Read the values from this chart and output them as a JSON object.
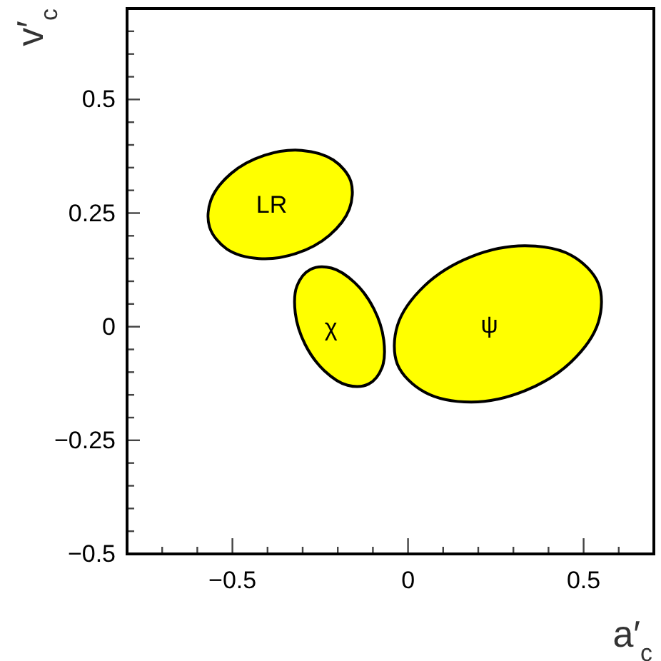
{
  "chart_data": {
    "type": "area",
    "xlabel": "a′$_{c}$",
    "ylabel": "v′$_{c}$",
    "xlim": [
      -0.8,
      0.7
    ],
    "ylim": [
      -0.5,
      0.7
    ],
    "xticks": [
      {
        "value": -0.7,
        "label": null
      },
      {
        "value": -0.6,
        "label": null
      },
      -0.5,
      {
        "value": -0.4,
        "label": null
      },
      {
        "value": -0.3,
        "label": null
      },
      {
        "value": -0.2,
        "label": null
      },
      {
        "value": -0.1,
        "label": null
      },
      0,
      {
        "value": 0.1,
        "label": null
      },
      {
        "value": 0.2,
        "label": null
      },
      {
        "value": 0.3,
        "label": null
      },
      {
        "value": 0.4,
        "label": null
      },
      0.5,
      {
        "value": 0.6,
        "label": null
      }
    ],
    "yticks": [
      -0.5,
      {
        "value": -0.45,
        "label": null
      },
      {
        "value": -0.4,
        "label": null
      },
      {
        "value": -0.35,
        "label": null
      },
      {
        "value": -0.3,
        "label": null
      },
      -0.25,
      {
        "value": -0.2,
        "label": null
      },
      {
        "value": -0.15,
        "label": null
      },
      {
        "value": -0.1,
        "label": null
      },
      {
        "value": -0.05,
        "label": null
      },
      0,
      {
        "value": 0.05,
        "label": null
      },
      {
        "value": 0.1,
        "label": null
      },
      {
        "value": 0.15,
        "label": null
      },
      {
        "value": 0.2,
        "label": null
      },
      0.25,
      {
        "value": 0.3,
        "label": null
      },
      {
        "value": 0.35,
        "label": null
      },
      {
        "value": 0.4,
        "label": null
      },
      {
        "value": 0.45,
        "label": null
      },
      0.5,
      {
        "value": 0.55,
        "label": null
      },
      {
        "value": 0.6,
        "label": null
      },
      {
        "value": 0.65,
        "label": null
      }
    ],
    "series": [
      {
        "name": "LR",
        "color": "#ffff00",
        "x": [
          -0.163,
          -0.167,
          -0.224,
          -0.319,
          -0.425,
          -0.516,
          -0.565,
          -0.561,
          -0.504,
          -0.409,
          -0.303,
          -0.213
        ],
        "values": [
          0.32,
          0.259,
          0.201,
          0.161,
          0.15,
          0.171,
          0.219,
          0.279,
          0.337,
          0.377,
          0.388,
          0.367
        ]
      },
      {
        "name": "χ",
        "color": "#ffff00",
        "x": [
          -0.112,
          -0.074,
          -0.069,
          -0.097,
          -0.152,
          -0.218,
          -0.278,
          -0.316,
          -0.321,
          -0.293,
          -0.238,
          -0.172
        ],
        "values": [
          -0.126,
          -0.09,
          -0.03,
          0.039,
          0.097,
          0.129,
          0.126,
          0.09,
          0.03,
          -0.039,
          -0.097,
          -0.129
        ]
      },
      {
        "name": "ψ",
        "color": "#ffff00",
        "x": [
          0.542,
          0.542,
          0.465,
          0.333,
          0.18,
          0.047,
          -0.03,
          -0.03,
          0.047,
          0.18,
          0.333,
          0.465
        ],
        "values": [
          0.095,
          0.01,
          -0.077,
          -0.141,
          -0.166,
          -0.144,
          -0.083,
          0.003,
          0.09,
          0.154,
          0.178,
          0.157
        ]
      }
    ]
  }
}
